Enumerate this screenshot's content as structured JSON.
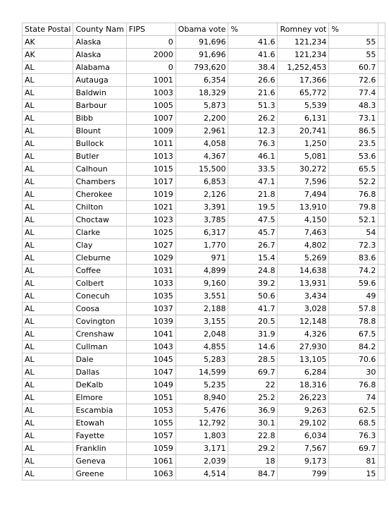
{
  "sheet": {
    "headers": [
      "State Postal",
      "County Nam",
      "FIPS",
      "Obama vote",
      "%",
      "Romney vot",
      "%",
      ""
    ],
    "rows": [
      [
        "AK",
        "Alaska",
        "0",
        "91,696",
        "41.6",
        "121,234",
        "55"
      ],
      [
        "AK",
        "Alaska",
        "2000",
        "91,696",
        "41.6",
        "121,234",
        "55"
      ],
      [
        "AL",
        "Alabama",
        "0",
        "793,620",
        "38.4",
        "1,252,453",
        "60.7"
      ],
      [
        "AL",
        "Autauga",
        "1001",
        "6,354",
        "26.6",
        "17,366",
        "72.6"
      ],
      [
        "AL",
        "Baldwin",
        "1003",
        "18,329",
        "21.6",
        "65,772",
        "77.4"
      ],
      [
        "AL",
        "Barbour",
        "1005",
        "5,873",
        "51.3",
        "5,539",
        "48.3"
      ],
      [
        "AL",
        "Bibb",
        "1007",
        "2,200",
        "26.2",
        "6,131",
        "73.1"
      ],
      [
        "AL",
        "Blount",
        "1009",
        "2,961",
        "12.3",
        "20,741",
        "86.5"
      ],
      [
        "AL",
        "Bullock",
        "1011",
        "4,058",
        "76.3",
        "1,250",
        "23.5"
      ],
      [
        "AL",
        "Butler",
        "1013",
        "4,367",
        "46.1",
        "5,081",
        "53.6"
      ],
      [
        "AL",
        "Calhoun",
        "1015",
        "15,500",
        "33.5",
        "30,272",
        "65.5"
      ],
      [
        "AL",
        "Chambers",
        "1017",
        "6,853",
        "47.1",
        "7,596",
        "52.2"
      ],
      [
        "AL",
        "Cherokee",
        "1019",
        "2,126",
        "21.8",
        "7,494",
        "76.8"
      ],
      [
        "AL",
        "Chilton",
        "1021",
        "3,391",
        "19.5",
        "13,910",
        "79.8"
      ],
      [
        "AL",
        "Choctaw",
        "1023",
        "3,785",
        "47.5",
        "4,150",
        "52.1"
      ],
      [
        "AL",
        "Clarke",
        "1025",
        "6,317",
        "45.7",
        "7,463",
        "54"
      ],
      [
        "AL",
        "Clay",
        "1027",
        "1,770",
        "26.7",
        "4,802",
        "72.3"
      ],
      [
        "AL",
        "Cleburne",
        "1029",
        "971",
        "15.4",
        "5,269",
        "83.6"
      ],
      [
        "AL",
        "Coffee",
        "1031",
        "4,899",
        "24.8",
        "14,638",
        "74.2"
      ],
      [
        "AL",
        "Colbert",
        "1033",
        "9,160",
        "39.2",
        "13,931",
        "59.6"
      ],
      [
        "AL",
        "Conecuh",
        "1035",
        "3,551",
        "50.6",
        "3,434",
        "49"
      ],
      [
        "AL",
        "Coosa",
        "1037",
        "2,188",
        "41.7",
        "3,028",
        "57.8"
      ],
      [
        "AL",
        "Covington",
        "1039",
        "3,155",
        "20.5",
        "12,148",
        "78.8"
      ],
      [
        "AL",
        "Crenshaw",
        "1041",
        "2,048",
        "31.9",
        "4,326",
        "67.5"
      ],
      [
        "AL",
        "Cullman",
        "1043",
        "4,855",
        "14.6",
        "27,930",
        "84.2"
      ],
      [
        "AL",
        "Dale",
        "1045",
        "5,283",
        "28.5",
        "13,105",
        "70.6"
      ],
      [
        "AL",
        "Dallas",
        "1047",
        "14,599",
        "69.7",
        "6,284",
        "30"
      ],
      [
        "AL",
        "DeKalb",
        "1049",
        "5,235",
        "22",
        "18,316",
        "76.8"
      ],
      [
        "AL",
        "Elmore",
        "1051",
        "8,940",
        "25.2",
        "26,223",
        "74"
      ],
      [
        "AL",
        "Escambia",
        "1053",
        "5,476",
        "36.9",
        "9,263",
        "62.5"
      ],
      [
        "AL",
        "Etowah",
        "1055",
        "12,792",
        "30.1",
        "29,102",
        "68.5"
      ],
      [
        "AL",
        "Fayette",
        "1057",
        "1,803",
        "22.8",
        "6,034",
        "76.3"
      ],
      [
        "AL",
        "Franklin",
        "1059",
        "3,171",
        "29.2",
        "7,567",
        "69.7"
      ],
      [
        "AL",
        "Geneva",
        "1061",
        "2,039",
        "18",
        "9,173",
        "81"
      ],
      [
        "AL",
        "Greene",
        "1063",
        "4,514",
        "84.7",
        "799",
        "15"
      ]
    ]
  }
}
